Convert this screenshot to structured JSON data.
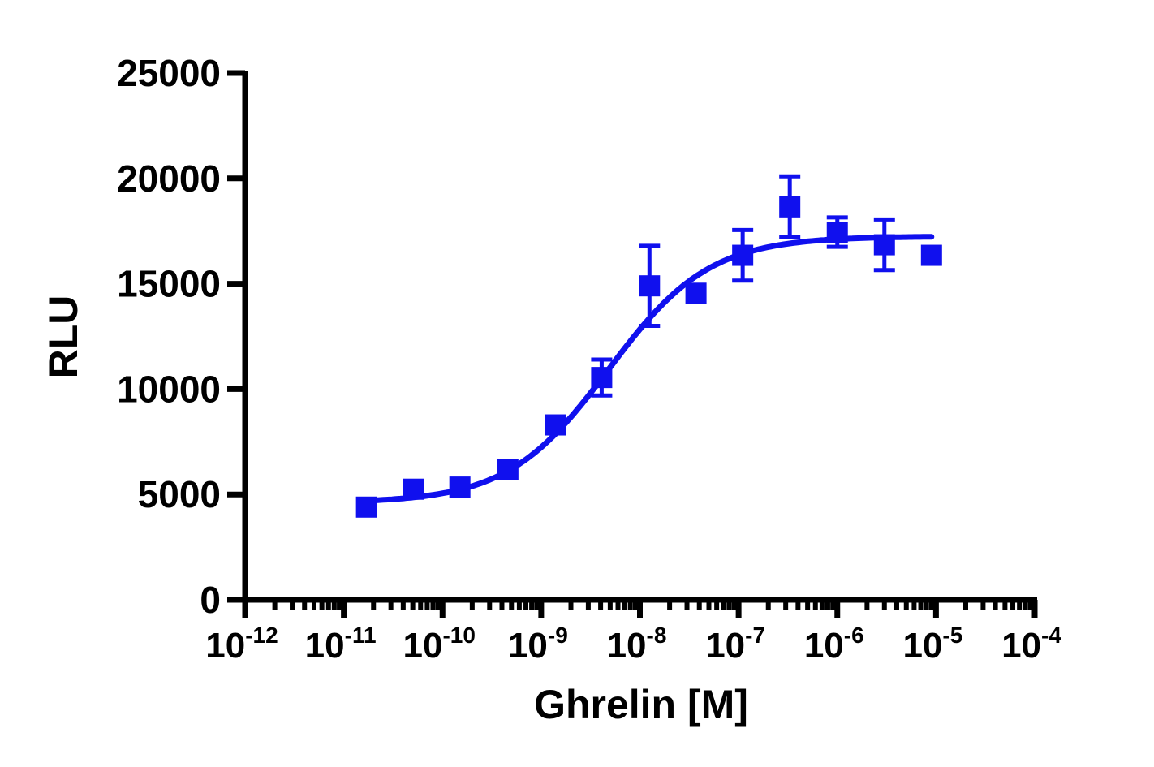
{
  "chart_data": {
    "type": "scatter",
    "title": "",
    "xlabel": "Ghrelin [M]",
    "ylabel": "RLU",
    "x_scale": "log",
    "xlim": [
      1e-12,
      0.0001
    ],
    "ylim": [
      0,
      25000
    ],
    "grid": false,
    "legend": "none",
    "x_tick_labels": [
      {
        "base": "10",
        "exp": "-12",
        "value": 1e-12
      },
      {
        "base": "10",
        "exp": "-11",
        "value": 1e-11
      },
      {
        "base": "10",
        "exp": "-10",
        "value": 1e-10
      },
      {
        "base": "10",
        "exp": "-9",
        "value": 1e-09
      },
      {
        "base": "10",
        "exp": "-8",
        "value": 1e-08
      },
      {
        "base": "10",
        "exp": "-7",
        "value": 1e-07
      },
      {
        "base": "10",
        "exp": "-6",
        "value": 1e-06
      },
      {
        "base": "10",
        "exp": "-5",
        "value": 1e-05
      },
      {
        "base": "10",
        "exp": "-4",
        "value": 0.0001
      }
    ],
    "y_tick_labels": [
      "0",
      "5000",
      "10000",
      "15000",
      "20000",
      "25000"
    ],
    "y_ticks": [
      0,
      5000,
      10000,
      15000,
      20000,
      25000
    ],
    "series": [
      {
        "color": "#1010ee",
        "marker": "square",
        "points": [
          {
            "x": 1.7e-11,
            "y": 4400,
            "err": 0
          },
          {
            "x": 5.1e-11,
            "y": 5250,
            "err": 0
          },
          {
            "x": 1.5e-10,
            "y": 5350,
            "err": 0
          },
          {
            "x": 4.6e-10,
            "y": 6200,
            "err": 0
          },
          {
            "x": 1.4e-09,
            "y": 8300,
            "err": 0
          },
          {
            "x": 4.1e-09,
            "y": 10550,
            "err": 850
          },
          {
            "x": 1.25e-08,
            "y": 14900,
            "err": 1900
          },
          {
            "x": 3.7e-08,
            "y": 14550,
            "err": 0
          },
          {
            "x": 1.1e-07,
            "y": 16350,
            "err": 1200
          },
          {
            "x": 3.3e-07,
            "y": 18650,
            "err": 1450
          },
          {
            "x": 1e-06,
            "y": 17450,
            "err": 700
          },
          {
            "x": 3e-06,
            "y": 16850,
            "err": 1200
          },
          {
            "x": 9e-06,
            "y": 16350,
            "err": 0
          }
        ],
        "fit": {
          "model": "four-parameter logistic",
          "bottom": 4600,
          "top": 17250,
          "ec50": 4.8e-09,
          "hill": 0.85
        }
      }
    ]
  }
}
